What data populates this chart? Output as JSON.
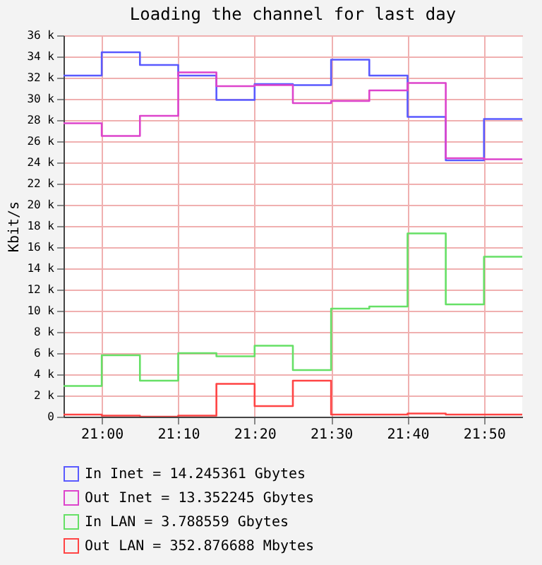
{
  "chart_data": {
    "type": "step",
    "title": "Loading the channel for last day",
    "ylabel": "Kbit/s",
    "x": [
      20.9167,
      21,
      21.0833,
      21.1667,
      21.25,
      21.3333,
      21.4167,
      21.5,
      21.5833,
      21.6667,
      21.75,
      21.8333,
      21.9167
    ],
    "xlim": [
      20.9167,
      21.9167
    ],
    "xticks": [
      {
        "value": 21,
        "label": "21:00"
      },
      {
        "value": 21.1667,
        "label": "21:10"
      },
      {
        "value": 21.3333,
        "label": "21:20"
      },
      {
        "value": 21.5,
        "label": "21:30"
      },
      {
        "value": 21.6667,
        "label": "21:40"
      },
      {
        "value": 21.8333,
        "label": "21:50"
      }
    ],
    "ylim": [
      0,
      36
    ],
    "yticks": [
      0,
      {
        "value": 2,
        "label": "2 k"
      },
      {
        "value": 4,
        "label": "4 k"
      },
      {
        "value": 6,
        "label": "6 k"
      },
      {
        "value": 8,
        "label": "8 k"
      },
      {
        "value": 10,
        "label": "10 k"
      },
      {
        "value": 12,
        "label": "12 k"
      },
      {
        "value": 14,
        "label": "14 k"
      },
      {
        "value": 16,
        "label": "16 k"
      },
      {
        "value": 18,
        "label": "18 k"
      },
      {
        "value": 20,
        "label": "20 k"
      },
      {
        "value": 22,
        "label": "22 k"
      },
      {
        "value": 24,
        "label": "24 k"
      },
      {
        "value": 26,
        "label": "26 k"
      },
      {
        "value": 28,
        "label": "28 k"
      },
      {
        "value": 30,
        "label": "30 k"
      },
      {
        "value": 32,
        "label": "32 k"
      },
      {
        "value": 34,
        "label": "34 k"
      },
      {
        "value": 36,
        "label": "36 k"
      }
    ],
    "grid": true,
    "legend": "bottom",
    "series": [
      {
        "name": "In Inet   = 14.245361 Gbytes",
        "color": "#5a5aff",
        "values": [
          32.2,
          34.4,
          33.2,
          32.2,
          29.9,
          31.4,
          31.3,
          33.7,
          32.2,
          28.3,
          24.2,
          28.1,
          28.1
        ]
      },
      {
        "name": "Out Inet  = 13.352245 Gbytes",
        "color": "#dd44cc",
        "values": [
          27.7,
          26.5,
          28.4,
          32.5,
          31.2,
          31.3,
          29.6,
          29.8,
          30.8,
          31.5,
          24.4,
          24.3,
          24.3
        ]
      },
      {
        "name": "In LAN    = 3.788559 Gbytes",
        "color": "#66e066",
        "values": [
          2.9,
          5.8,
          3.4,
          6.0,
          5.7,
          6.7,
          4.4,
          10.2,
          10.4,
          17.3,
          10.6,
          15.1,
          15.1
        ]
      },
      {
        "name": "Out LAN   = 352.876688 Mbytes",
        "color": "#ff4444",
        "values": [
          0.2,
          0.1,
          0.0,
          0.1,
          3.1,
          1.0,
          3.4,
          0.2,
          0.2,
          0.3,
          0.2,
          0.2,
          0.2
        ]
      }
    ]
  }
}
